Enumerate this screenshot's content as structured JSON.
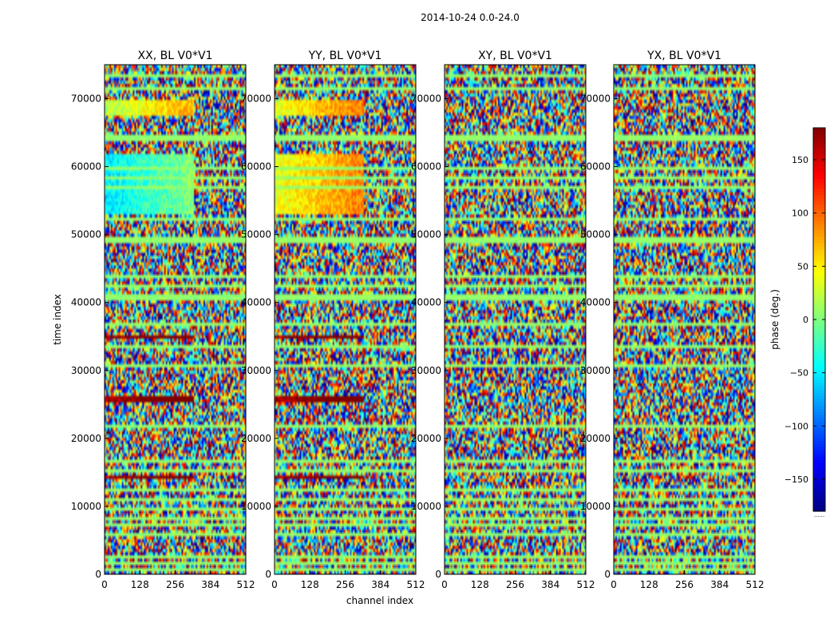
{
  "chart_data": {
    "type": "heatmap",
    "suptitle": "2014-10-24 0.0-24.0",
    "panels": [
      {
        "title": "XX, BL V0*V1",
        "coherent_bands": [
          [
            53000,
            62000,
            0.35
          ],
          [
            67500,
            70000,
            0.55
          ],
          [
            34500,
            35300,
            0.95
          ],
          [
            25500,
            26300,
            0.95
          ],
          [
            14000,
            14700,
            0.95
          ]
        ]
      },
      {
        "title": "YY, BL V0*V1",
        "coherent_bands": [
          [
            53000,
            62000,
            0.6
          ],
          [
            67500,
            70000,
            0.6
          ],
          [
            34500,
            35300,
            0.95
          ],
          [
            25500,
            26300,
            0.95
          ],
          [
            14000,
            14700,
            0.95
          ]
        ]
      },
      {
        "title": "XY, BL V0*V1",
        "coherent_bands": []
      },
      {
        "title": "YX, BL V0*V1",
        "coherent_bands": []
      }
    ],
    "xlabel": "channel index",
    "ylabel": "time index",
    "x_ticks": [
      "0",
      "128",
      "256",
      "384",
      "512"
    ],
    "y_ticks": [
      "0",
      "10000",
      "20000",
      "30000",
      "40000",
      "50000",
      "60000",
      "70000"
    ],
    "xlim": [
      0,
      512
    ],
    "ylim": [
      0,
      75000
    ],
    "flag_rows": [
      800,
      1800,
      2700,
      6000,
      7200,
      8200,
      9500,
      11000,
      12500,
      15200,
      16800,
      21800,
      30800,
      33500,
      37000,
      40800,
      42300,
      43800,
      44000,
      49200,
      52300,
      57000,
      58500,
      59800,
      64200,
      71500,
      73500
    ],
    "colorbar": {
      "label": "phase (deg.)",
      "ticks": [
        "150",
        "100",
        "50",
        "0",
        "−50",
        "−100",
        "−150"
      ],
      "tick_values": [
        150,
        100,
        50,
        0,
        -50,
        -100,
        -150
      ],
      "range": [
        -180,
        180
      ],
      "colormap": "jet",
      "below_mark": "......"
    }
  }
}
